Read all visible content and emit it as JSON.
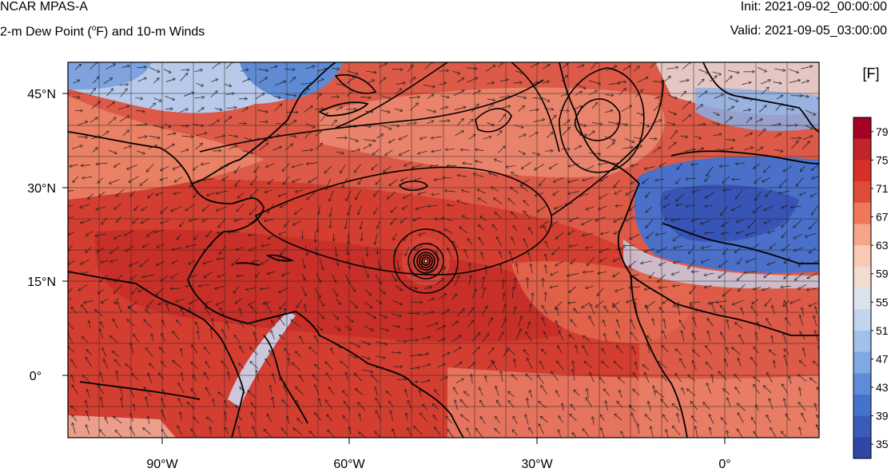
{
  "header": {
    "title": "NCAR MPAS-A",
    "subtitle_prefix": "2-m Dew Point (",
    "subtitle_deg": "o",
    "subtitle_suffix": "F) and 10-m Winds",
    "init": "Init: 2021-09-02_00:00:00",
    "valid": "Valid: 2021-09-05_03:00:00"
  },
  "map": {
    "projection": "cylindrical-equidistant",
    "lon_range": [
      -106,
      14
    ],
    "lat_range": [
      -10,
      50
    ],
    "lat_labels": [
      "45°N",
      "30°N",
      "15°N",
      "0°"
    ],
    "lon_labels": [
      "90°W",
      "60°W",
      "30°W",
      "0°"
    ],
    "grid": true,
    "hurricane_center": {
      "lon": -47,
      "lat": 18
    }
  },
  "colorbar": {
    "unit_label": "[F]",
    "ticks": [
      "79",
      "75",
      "71",
      "67",
      "63",
      "59",
      "55",
      "51",
      "47",
      "43",
      "39",
      "35"
    ],
    "colors": [
      "#a50026",
      "#c0252b",
      "#d73027",
      "#e04c3a",
      "#f0775a",
      "#f6a58a",
      "#f9c9b4",
      "#f2dcd2",
      "#dde3ee",
      "#c3d4ee",
      "#a1c0ea",
      "#80a8e2",
      "#5e8cd6",
      "#4573cc",
      "#3a5cb8",
      "#3147a6"
    ]
  }
}
